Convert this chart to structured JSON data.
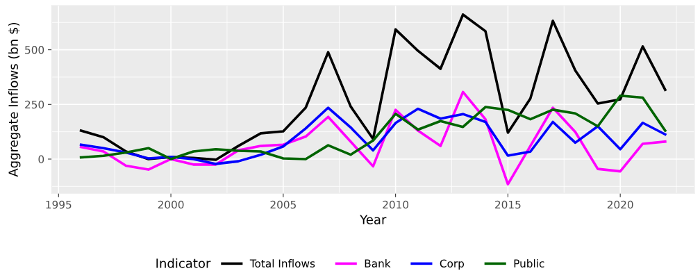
{
  "chart_data": {
    "type": "line",
    "xlabel": "Year",
    "ylabel": "Aggregate Inflows (bn $)",
    "legend_title": "Indicator",
    "x": [
      1996,
      1997,
      1998,
      1999,
      2000,
      2001,
      2002,
      2003,
      2004,
      2005,
      2006,
      2007,
      2008,
      2009,
      2010,
      2011,
      2012,
      2013,
      2014,
      2015,
      2016,
      2017,
      2018,
      2019,
      2020,
      2021,
      2022
    ],
    "series": [
      {
        "name": "Total Inflows",
        "color": "#000000",
        "values": [
          130,
          100,
          35,
          0,
          10,
          5,
          -3,
          60,
          118,
          127,
          235,
          489,
          241,
          92,
          593,
          495,
          413,
          661,
          585,
          121,
          277,
          632,
          405,
          254,
          273,
          515,
          317
        ]
      },
      {
        "name": "Bank",
        "color": "#ff00ff",
        "values": [
          55,
          35,
          -30,
          -48,
          0,
          -25,
          -25,
          40,
          60,
          66,
          103,
          193,
          80,
          -33,
          225,
          130,
          60,
          307,
          182,
          -115,
          60,
          235,
          124,
          -45,
          -56,
          70,
          80
        ]
      },
      {
        "name": "Corp",
        "color": "#0000ff",
        "values": [
          66,
          50,
          30,
          3,
          10,
          0,
          -22,
          -10,
          20,
          58,
          140,
          235,
          145,
          40,
          165,
          230,
          185,
          206,
          170,
          16,
          34,
          170,
          75,
          150,
          45,
          166,
          113
        ]
      },
      {
        "name": "Public",
        "color": "#006400",
        "values": [
          8,
          15,
          30,
          50,
          0,
          35,
          45,
          38,
          35,
          3,
          0,
          63,
          20,
          85,
          207,
          135,
          174,
          147,
          238,
          225,
          182,
          226,
          209,
          150,
          290,
          281,
          130
        ]
      }
    ],
    "xlim": [
      1994.7,
      2023.3
    ],
    "xticks": [
      1995,
      2000,
      2005,
      2010,
      2015,
      2020
    ],
    "ylim": [
      -156,
      702
    ],
    "yticks": [
      0,
      250,
      500
    ],
    "grid": true,
    "legend": "bottom",
    "marker": "none",
    "line_style": "solid"
  }
}
